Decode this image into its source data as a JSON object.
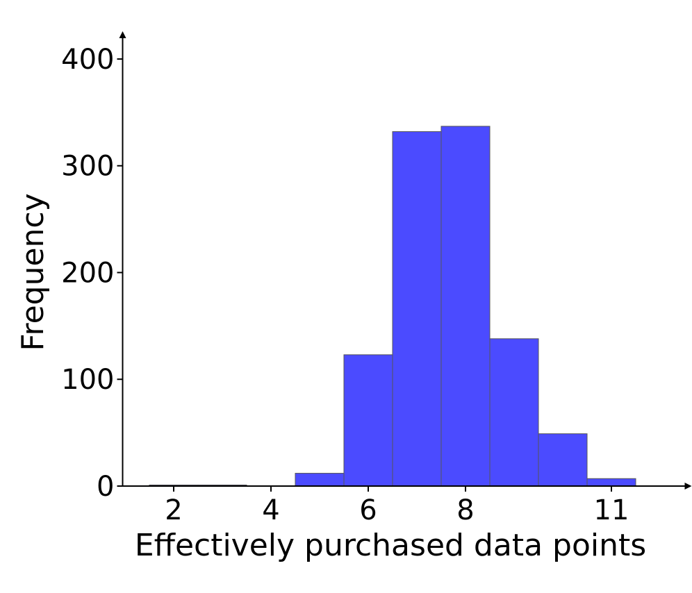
{
  "chart_data": {
    "type": "histogram",
    "x_label": "Effectively purchased data points",
    "y_label": "Frequency",
    "bins": [
      1.5,
      2.5,
      3.5,
      4.5,
      5.5,
      6.5,
      7.5,
      8.5,
      9.5,
      10.5,
      11.5
    ],
    "values": [
      1,
      1,
      0,
      12,
      123,
      332,
      337,
      138,
      49,
      7
    ],
    "color": "#4b4bff",
    "edge_color": "#555555",
    "xlim": [
      0.95,
      12.65
    ],
    "ylim": [
      0,
      426
    ],
    "xticks": [
      2,
      4,
      6,
      8,
      11
    ],
    "yticks": [
      0,
      100,
      200,
      300,
      400
    ]
  }
}
